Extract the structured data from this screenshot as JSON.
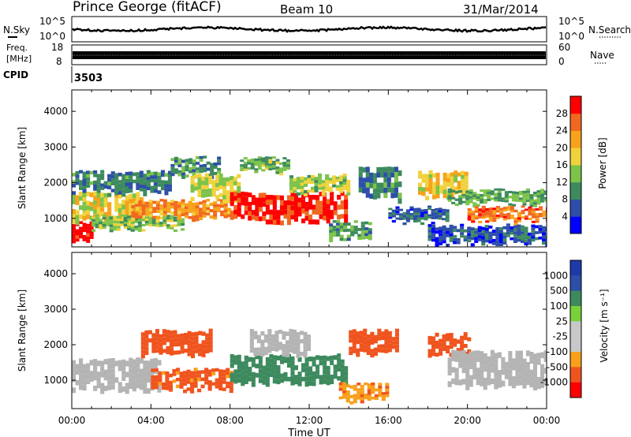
{
  "header": {
    "station": "Prince George (fitACF)",
    "beam": "Beam 10",
    "date": "31/Mar/2014"
  },
  "panels": {
    "noise": {
      "left_label": "N.Sky",
      "right_label": "N.Search",
      "left_ticks": [
        "10^5",
        "10^0"
      ],
      "right_ticks": [
        "10^5",
        "10^0"
      ]
    },
    "freq": {
      "left_label_1": "Freq.",
      "left_label_2": "[MHz]",
      "right_label": "Nave",
      "left_ticks": [
        "18",
        "8"
      ],
      "right_ticks": [
        "60",
        "0"
      ]
    },
    "cpid": {
      "label": "CPID",
      "value": "3503"
    }
  },
  "colors": {
    "power_scale": [
      "#0000ff",
      "#2d4fa8",
      "#3d8a5e",
      "#7cc34a",
      "#f0d23c",
      "#f7a21b",
      "#f06820",
      "#ff0000"
    ],
    "velocity_scale": [
      "#ff0000",
      "#f0541e",
      "#f8a01a",
      "#c8c8c8",
      "#c8c8c8",
      "#7ad03a",
      "#3d8a5e",
      "#2d4fa8",
      "#1f3aa8"
    ],
    "ground_scatter": "#b4b4b4"
  },
  "chart_data": [
    {
      "type": "heatmap",
      "title": "",
      "xlabel": "",
      "ylabel": "Slant Range [km]",
      "yticks": [
        "1000",
        "2000",
        "3000",
        "4000"
      ],
      "ylim": [
        200,
        4600
      ],
      "xlim": [
        0,
        24
      ],
      "colorbar": {
        "label": "Power [dB]",
        "ticks": [
          "4",
          "8",
          "12",
          "16",
          "20",
          "24",
          "28"
        ],
        "range": [
          0,
          32
        ]
      },
      "bands": [
        {
          "t": [
            0.0,
            1.0
          ],
          "range": [
            400,
            900
          ],
          "value": 30
        },
        {
          "t": [
            0.0,
            3.5
          ],
          "range": [
            900,
            1700
          ],
          "value": 18
        },
        {
          "t": [
            0.0,
            5.0
          ],
          "range": [
            1700,
            2300
          ],
          "value": 9
        },
        {
          "t": [
            1.0,
            5.5
          ],
          "range": [
            700,
            1100
          ],
          "value": 14
        },
        {
          "t": [
            3.0,
            8.0
          ],
          "range": [
            1000,
            1500
          ],
          "value": 23
        },
        {
          "t": [
            5.0,
            7.5
          ],
          "range": [
            2200,
            2700
          ],
          "value": 10
        },
        {
          "t": [
            6.0,
            8.5
          ],
          "range": [
            1500,
            2200
          ],
          "value": 16
        },
        {
          "t": [
            8.0,
            13.8
          ],
          "range": [
            900,
            1700
          ],
          "value": 29
        },
        {
          "t": [
            8.5,
            11.0
          ],
          "range": [
            2300,
            2700
          ],
          "value": 13
        },
        {
          "t": [
            11.0,
            14.0
          ],
          "range": [
            1700,
            2200
          ],
          "value": 15
        },
        {
          "t": [
            13.0,
            15.0
          ],
          "range": [
            400,
            900
          ],
          "value": 11
        },
        {
          "t": [
            14.5,
            16.5
          ],
          "range": [
            1500,
            2400
          ],
          "value": 9
        },
        {
          "t": [
            16.0,
            19.0
          ],
          "range": [
            900,
            1300
          ],
          "value": 7
        },
        {
          "t": [
            17.5,
            20.0
          ],
          "range": [
            1600,
            2300
          ],
          "value": 19
        },
        {
          "t": [
            19.0,
            24.0
          ],
          "range": [
            1400,
            1800
          ],
          "value": 12
        },
        {
          "t": [
            20.0,
            24.0
          ],
          "range": [
            900,
            1300
          ],
          "value": 25
        },
        {
          "t": [
            18.0,
            24.0
          ],
          "range": [
            300,
            800
          ],
          "value": 6
        }
      ]
    },
    {
      "type": "heatmap",
      "title": "",
      "xlabel": "Time UT",
      "ylabel": "Slant Range [km]",
      "xticks": [
        "00:00",
        "04:00",
        "08:00",
        "12:00",
        "16:00",
        "20:00",
        "00:00"
      ],
      "yticks": [
        "1000",
        "2000",
        "3000",
        "4000"
      ],
      "ylim": [
        200,
        4600
      ],
      "xlim": [
        0,
        24
      ],
      "colorbar": {
        "label": "Velocity [m s⁻¹]",
        "ticks": [
          "1000",
          "500",
          "100",
          "25",
          "-25",
          "-100",
          "-500",
          "-1000"
        ]
      },
      "bands": [
        {
          "t": [
            0.0,
            4.5
          ],
          "range": [
            700,
            1600
          ],
          "value": "ground"
        },
        {
          "t": [
            3.5,
            7.0
          ],
          "range": [
            1700,
            2400
          ],
          "value": -300
        },
        {
          "t": [
            4.0,
            8.0
          ],
          "range": [
            700,
            1300
          ],
          "value": -150
        },
        {
          "t": [
            8.0,
            13.8
          ],
          "range": [
            900,
            1700
          ],
          "value": 200
        },
        {
          "t": [
            9.0,
            12.0
          ],
          "range": [
            1700,
            2400
          ],
          "value": "ground"
        },
        {
          "t": [
            14.0,
            16.5
          ],
          "range": [
            1700,
            2400
          ],
          "value": -200
        },
        {
          "t": [
            13.5,
            16.0
          ],
          "range": [
            400,
            900
          ],
          "value": -80
        },
        {
          "t": [
            18.0,
            20.0
          ],
          "range": [
            1600,
            2300
          ],
          "value": -300
        },
        {
          "t": [
            19.0,
            24.0
          ],
          "range": [
            800,
            1800
          ],
          "value": "ground"
        }
      ]
    }
  ]
}
